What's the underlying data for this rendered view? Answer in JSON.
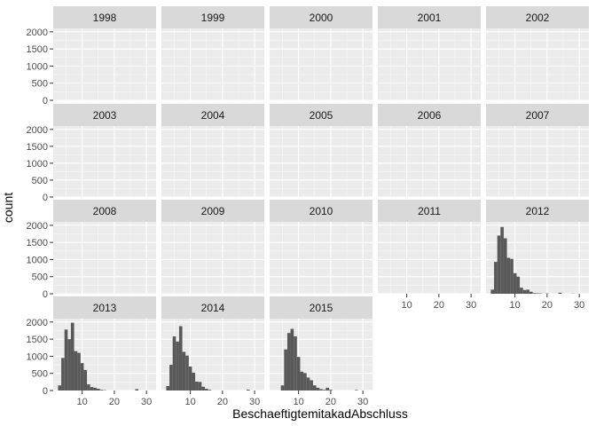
{
  "chart_data": {
    "type": "bar",
    "xlabel": "BeschaeftigtemitakadAbschluss",
    "ylabel": "count",
    "xlim": [
      1,
      33
    ],
    "ylim": [
      0,
      2100
    ],
    "x_ticks": [
      10,
      20,
      30
    ],
    "y_ticks": [
      0,
      500,
      1000,
      1500,
      2000
    ],
    "bin_width": 1,
    "panel_bg": "#ebebeb",
    "strip_bg": "#d9d9d9",
    "bar_color": "#595959",
    "grid": true,
    "facets": [
      {
        "label": "1998",
        "bins": []
      },
      {
        "label": "1999",
        "bins": []
      },
      {
        "label": "2000",
        "bins": []
      },
      {
        "label": "2001",
        "bins": []
      },
      {
        "label": "2002",
        "bins": []
      },
      {
        "label": "2003",
        "bins": []
      },
      {
        "label": "2004",
        "bins": []
      },
      {
        "label": "2005",
        "bins": []
      },
      {
        "label": "2006",
        "bins": []
      },
      {
        "label": "2007",
        "bins": []
      },
      {
        "label": "2008",
        "bins": []
      },
      {
        "label": "2009",
        "bins": []
      },
      {
        "label": "2010",
        "bins": []
      },
      {
        "label": "2011",
        "bins": []
      },
      {
        "label": "2012",
        "bins": [
          {
            "x": 3,
            "count": 120
          },
          {
            "x": 4,
            "count": 930
          },
          {
            "x": 5,
            "count": 1700
          },
          {
            "x": 6,
            "count": 1950
          },
          {
            "x": 7,
            "count": 1620
          },
          {
            "x": 8,
            "count": 1050
          },
          {
            "x": 9,
            "count": 1020
          },
          {
            "x": 10,
            "count": 600
          },
          {
            "x": 11,
            "count": 500
          },
          {
            "x": 12,
            "count": 180
          },
          {
            "x": 13,
            "count": 110
          },
          {
            "x": 14,
            "count": 120
          },
          {
            "x": 15,
            "count": 60
          },
          {
            "x": 16,
            "count": 20
          },
          {
            "x": 17,
            "count": 15
          },
          {
            "x": 18,
            "count": 10
          },
          {
            "x": 20,
            "count": 8
          },
          {
            "x": 24,
            "count": 30
          },
          {
            "x": 28,
            "count": 5
          }
        ]
      },
      {
        "label": "2013",
        "bins": [
          {
            "x": 3,
            "count": 150
          },
          {
            "x": 4,
            "count": 950
          },
          {
            "x": 5,
            "count": 1780
          },
          {
            "x": 6,
            "count": 1500
          },
          {
            "x": 7,
            "count": 1980
          },
          {
            "x": 8,
            "count": 1150
          },
          {
            "x": 9,
            "count": 1100
          },
          {
            "x": 10,
            "count": 800
          },
          {
            "x": 11,
            "count": 600
          },
          {
            "x": 12,
            "count": 180
          },
          {
            "x": 13,
            "count": 100
          },
          {
            "x": 14,
            "count": 80
          },
          {
            "x": 15,
            "count": 50
          },
          {
            "x": 16,
            "count": 20
          },
          {
            "x": 17,
            "count": 10
          },
          {
            "x": 27,
            "count": 40
          }
        ]
      },
      {
        "label": "2014",
        "bins": [
          {
            "x": 3,
            "count": 130
          },
          {
            "x": 4,
            "count": 750
          },
          {
            "x": 5,
            "count": 1580
          },
          {
            "x": 6,
            "count": 1430
          },
          {
            "x": 7,
            "count": 1880
          },
          {
            "x": 8,
            "count": 1130
          },
          {
            "x": 9,
            "count": 1020
          },
          {
            "x": 10,
            "count": 700
          },
          {
            "x": 11,
            "count": 520
          },
          {
            "x": 12,
            "count": 260
          },
          {
            "x": 13,
            "count": 250
          },
          {
            "x": 14,
            "count": 110
          },
          {
            "x": 15,
            "count": 50
          },
          {
            "x": 16,
            "count": 20
          },
          {
            "x": 28,
            "count": 25
          }
        ]
      },
      {
        "label": "2015",
        "bins": [
          {
            "x": 5,
            "count": 150
          },
          {
            "x": 6,
            "count": 1200
          },
          {
            "x": 7,
            "count": 1680
          },
          {
            "x": 8,
            "count": 1800
          },
          {
            "x": 9,
            "count": 1580
          },
          {
            "x": 10,
            "count": 980
          },
          {
            "x": 11,
            "count": 550
          },
          {
            "x": 12,
            "count": 510
          },
          {
            "x": 13,
            "count": 380
          },
          {
            "x": 14,
            "count": 300
          },
          {
            "x": 15,
            "count": 150
          },
          {
            "x": 16,
            "count": 80
          },
          {
            "x": 17,
            "count": 40
          },
          {
            "x": 18,
            "count": 20
          },
          {
            "x": 19,
            "count": 80
          },
          {
            "x": 20,
            "count": 20
          },
          {
            "x": 28,
            "count": 15
          }
        ]
      }
    ]
  }
}
